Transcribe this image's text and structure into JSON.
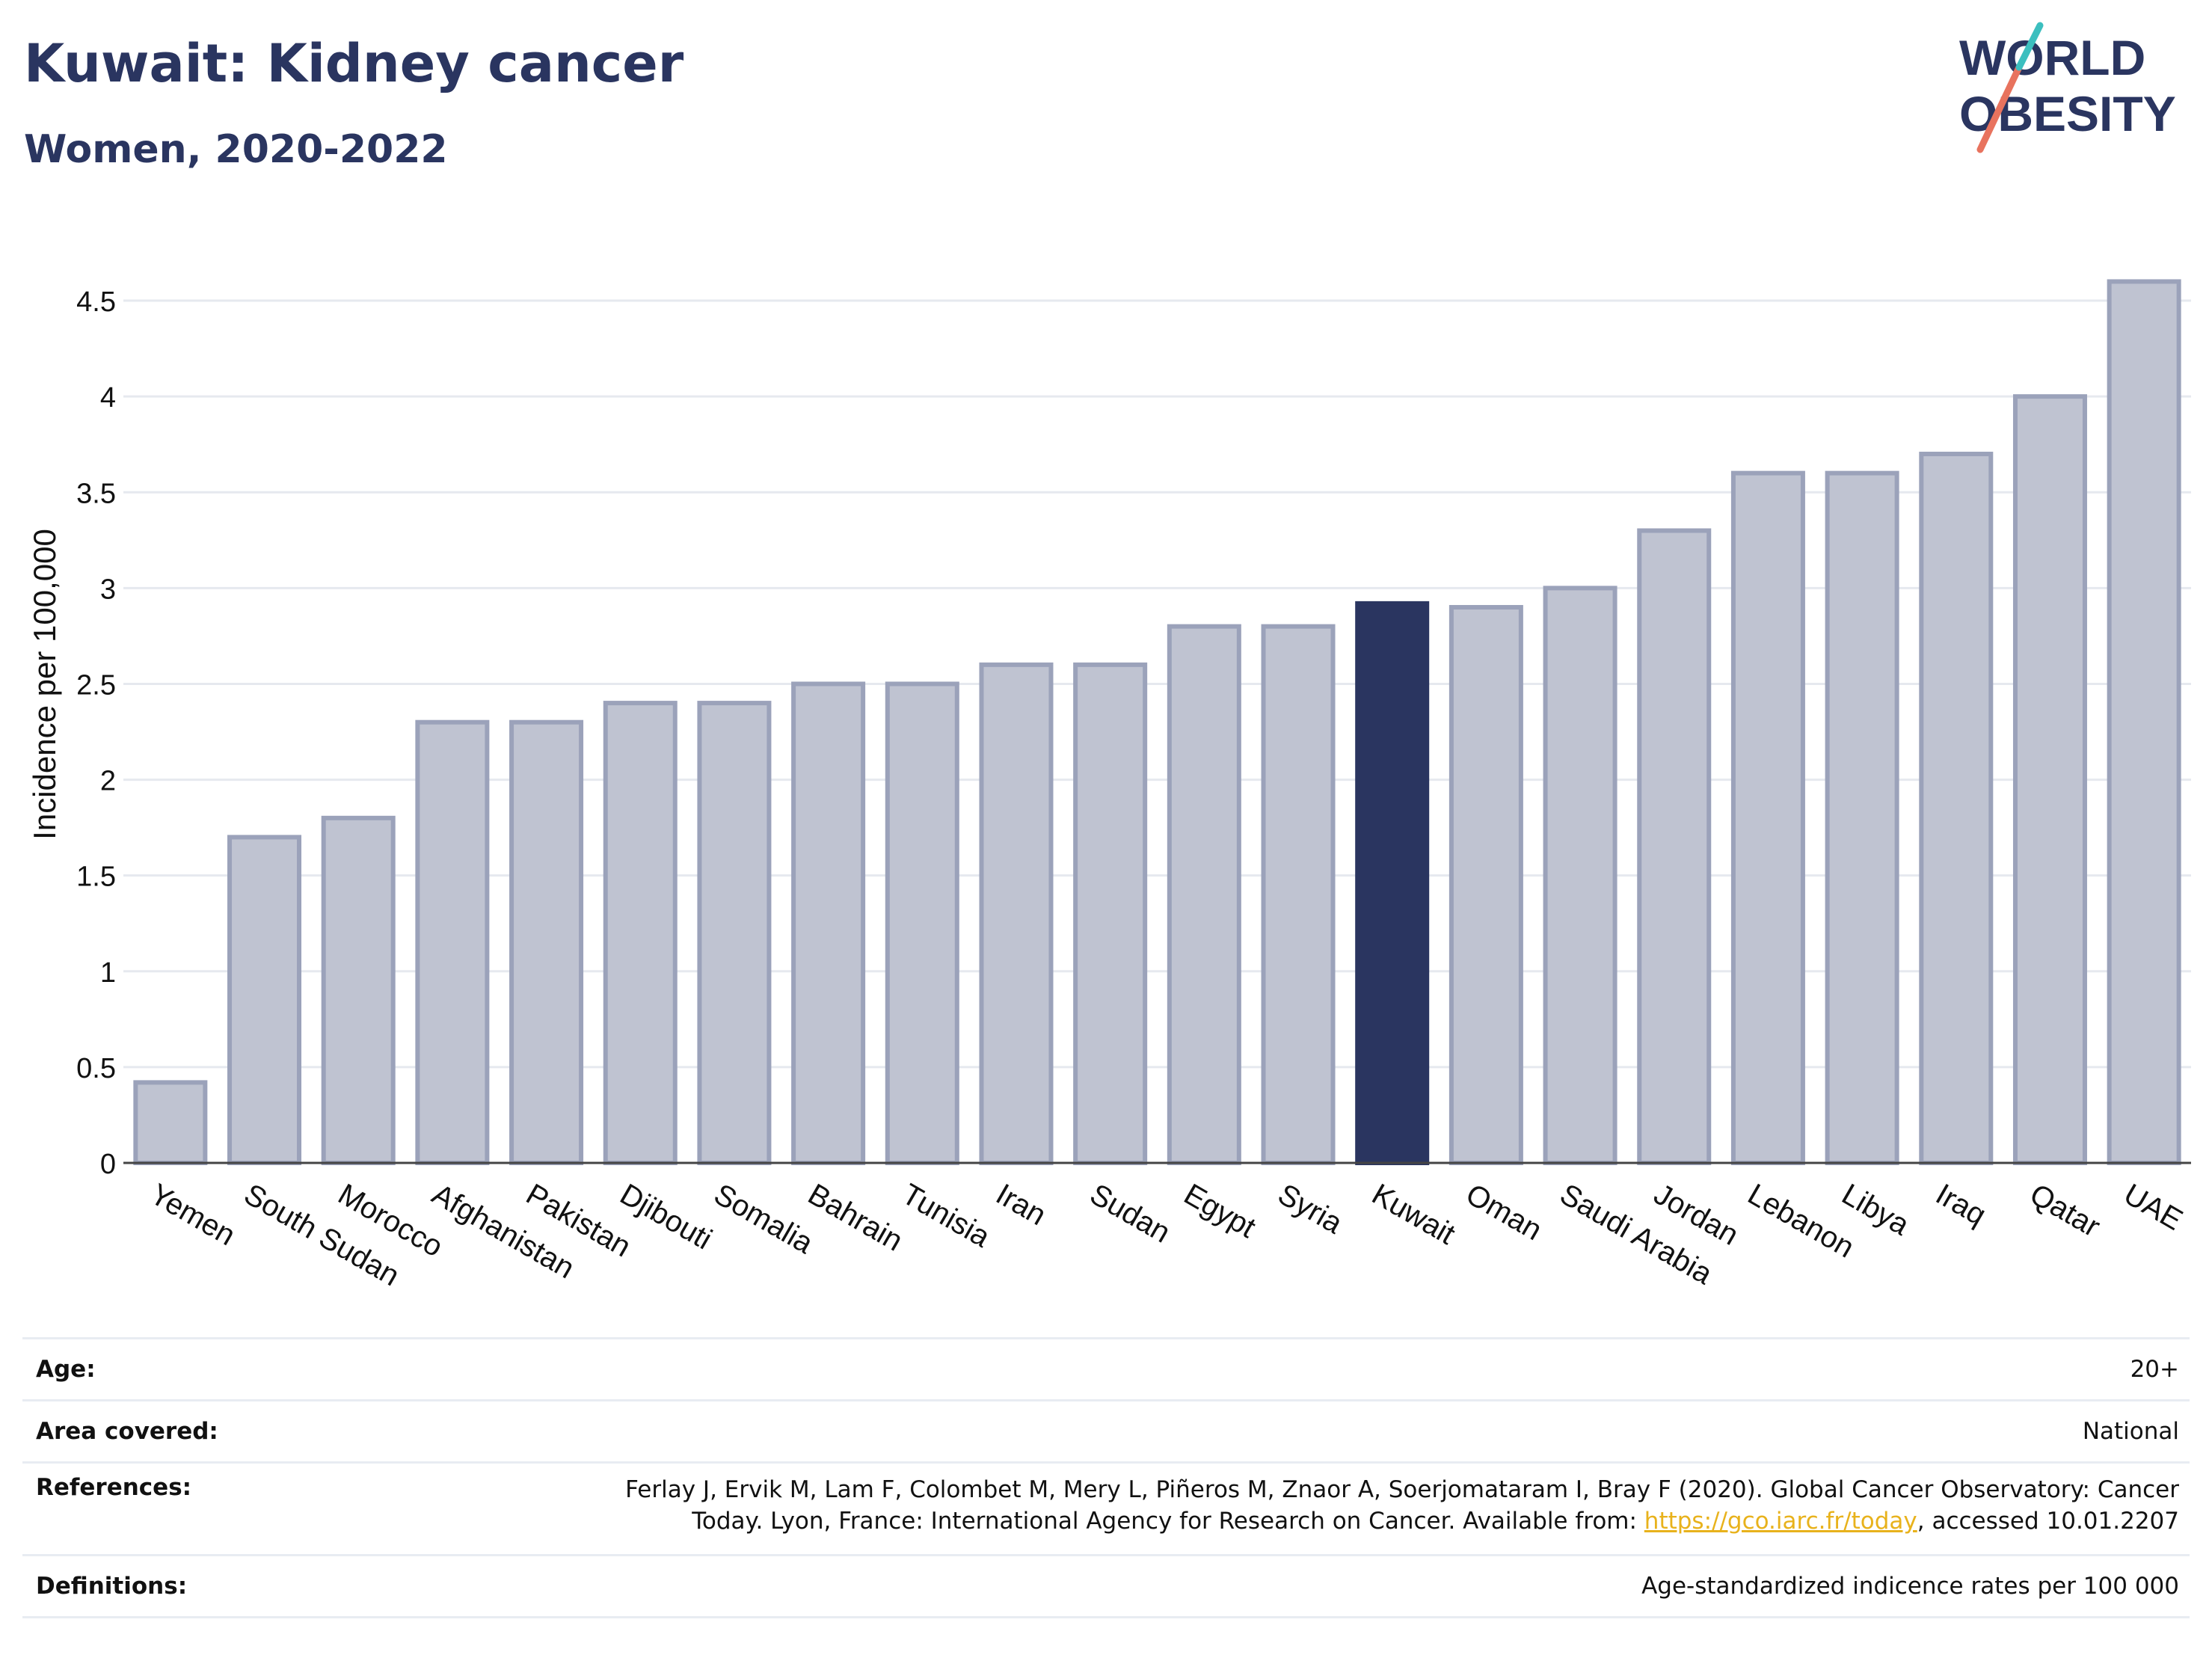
{
  "header": {
    "title": "Kuwait: Kidney cancer",
    "subtitle": "Women, 2020-2022",
    "logo_line1": "WORLD",
    "logo_line2": "OBESITY"
  },
  "chart_data": {
    "type": "bar",
    "categories": [
      "Yemen",
      "South Sudan",
      "Morocco",
      "Afghanistan",
      "Pakistan",
      "Djibouti",
      "Somalia",
      "Bahrain",
      "Tunisia",
      "Iran",
      "Sudan",
      "Egypt",
      "Syria",
      "Kuwait",
      "Oman",
      "Saudi Arabia",
      "Jordan",
      "Lebanon",
      "Libya",
      "Iraq",
      "Qatar",
      "UAE"
    ],
    "values": [
      0.42,
      1.7,
      1.8,
      2.3,
      2.3,
      2.4,
      2.4,
      2.5,
      2.5,
      2.6,
      2.6,
      2.8,
      2.8,
      2.92,
      2.9,
      3.0,
      3.3,
      3.6,
      3.6,
      3.7,
      4.0,
      4.6
    ],
    "highlight": "Kuwait",
    "ylabel": "Incidence per 100,000",
    "xlabel": "",
    "ylim": [
      0,
      4.75
    ],
    "yticks": [
      0,
      0.5,
      1,
      1.5,
      2,
      2.5,
      3,
      3.5,
      4,
      4.5
    ],
    "ytick_labels": [
      "0",
      "0.5",
      "1",
      "1.5",
      "2",
      "2.5",
      "3",
      "3.5",
      "4",
      "4.5"
    ],
    "grid": true,
    "colors": {
      "bar": "#bfc3d1",
      "bar_border": "#9ba2ba",
      "highlight": "#2a3560"
    }
  },
  "info": {
    "age_label": "Age:",
    "age_value": "20+",
    "area_label": "Area covered:",
    "area_value": "National",
    "references_label": "References:",
    "references_line1": "Ferlay J, Ervik M, Lam F, Colombet M, Mery L, Piñeros M, Znaor A, Soerjomataram I, Bray F (2020). Global Cancer Observatory: Cancer",
    "references_line2_pre": "Today. Lyon, France: International Agency for Research on Cancer. Available from: ",
    "references_link": "https://gco.iarc.fr/today",
    "references_line2_post": ", accessed 10.01.2207",
    "definitions_label": "Definitions:",
    "definitions_value": "Age-standardized indicence rates per 100 000"
  }
}
